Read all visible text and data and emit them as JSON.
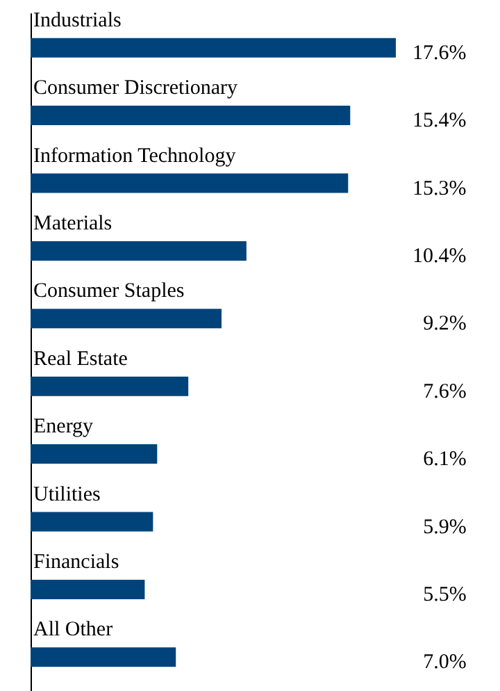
{
  "chart_data": {
    "type": "bar",
    "orientation": "horizontal",
    "tick_labels": false,
    "categories": [
      "Industrials",
      "Consumer Discretionary",
      "Information Technology",
      "Materials",
      "Consumer Staples",
      "Real Estate",
      "Energy",
      "Utilities",
      "Financials",
      "All Other"
    ],
    "series": [
      {
        "color": "#00437a",
        "values": [
          17.6,
          15.4,
          15.3,
          10.4,
          9.2,
          7.6,
          6.1,
          5.9,
          5.5,
          7.0
        ],
        "value_labels": [
          "17.6%",
          "15.4%",
          "15.3%",
          "10.4%",
          "9.2%",
          "7.6%",
          "6.1%",
          "5.9%",
          "5.5%",
          "7.0%"
        ]
      }
    ]
  }
}
